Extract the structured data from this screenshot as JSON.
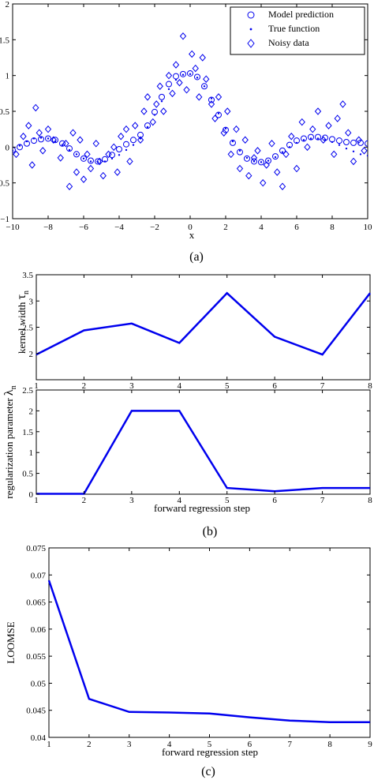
{
  "chart_data": [
    {
      "type": "scatter",
      "panel_caption": "(a)",
      "xlabel": "x",
      "ylabel": "",
      "xlim": [
        -10,
        10
      ],
      "ylim": [
        -1,
        2
      ],
      "xticks": [
        -10,
        -8,
        -6,
        -4,
        -2,
        0,
        2,
        4,
        6,
        8,
        10
      ],
      "xtick_labels": [
        "−10",
        "−8",
        "−6",
        "−4",
        "−2",
        "0",
        "2",
        "4",
        "6",
        "8",
        "10"
      ],
      "yticks": [
        -1,
        -0.5,
        0,
        0.5,
        1,
        1.5,
        2
      ],
      "ytick_labels": [
        "−1",
        "−0.5",
        "0",
        "0.5",
        "1",
        "1.5",
        "2"
      ],
      "legend_position": "top-right",
      "legend": [
        "Model prediction",
        "True function",
        "Noisy data"
      ],
      "series": [
        {
          "name": "Model prediction",
          "marker": "circle",
          "x": [
            -10,
            -9.6,
            -9.2,
            -8.8,
            -8.4,
            -8.0,
            -7.6,
            -7.2,
            -6.8,
            -6.4,
            -6.0,
            -5.6,
            -5.2,
            -4.8,
            -4.4,
            -4.0,
            -3.6,
            -3.2,
            -2.8,
            -2.4,
            -2.0,
            -1.6,
            -1.2,
            -0.8,
            -0.4,
            0.0,
            0.4,
            0.8,
            1.2,
            1.6,
            2.0,
            2.4,
            2.8,
            3.2,
            3.6,
            4.0,
            4.4,
            4.8,
            5.2,
            5.6,
            6.0,
            6.4,
            6.8,
            7.2,
            7.6,
            8.0,
            8.4,
            8.8,
            9.2,
            9.6,
            10.0
          ],
          "y": [
            -0.04,
            0.0,
            0.05,
            0.09,
            0.11,
            0.12,
            0.1,
            0.05,
            -0.02,
            -0.1,
            -0.16,
            -0.19,
            -0.2,
            -0.17,
            -0.11,
            -0.03,
            0.04,
            0.1,
            0.17,
            0.3,
            0.49,
            0.7,
            0.88,
            0.99,
            1.02,
            1.03,
            0.98,
            0.85,
            0.66,
            0.45,
            0.24,
            0.06,
            -0.07,
            -0.16,
            -0.2,
            -0.21,
            -0.19,
            -0.13,
            -0.05,
            0.03,
            0.09,
            0.12,
            0.14,
            0.14,
            0.13,
            0.11,
            0.09,
            0.07,
            0.06,
            0.06,
            0.05
          ]
        },
        {
          "name": "True function",
          "marker": "dot",
          "x": [
            -10,
            -9.6,
            -9.2,
            -8.8,
            -8.4,
            -8.0,
            -7.6,
            -7.2,
            -6.8,
            -6.4,
            -6.0,
            -5.6,
            -5.2,
            -4.8,
            -4.4,
            -4.0,
            -3.6,
            -3.2,
            -2.8,
            -2.4,
            -2.0,
            -1.6,
            -1.2,
            -0.8,
            -0.4,
            0.0,
            0.4,
            0.8,
            1.2,
            1.6,
            2.0,
            2.4,
            2.8,
            3.2,
            3.6,
            4.0,
            4.4,
            4.8,
            5.2,
            5.6,
            6.0,
            6.4,
            6.8,
            7.2,
            7.6,
            8.0,
            8.4,
            8.8,
            9.2,
            9.6,
            10.0
          ],
          "y": [
            -0.05,
            0.02,
            0.08,
            0.12,
            0.13,
            0.12,
            0.08,
            0.03,
            -0.04,
            -0.1,
            -0.16,
            -0.2,
            -0.21,
            -0.2,
            -0.16,
            -0.11,
            -0.04,
            0.03,
            0.12,
            0.28,
            0.45,
            0.64,
            0.81,
            0.94,
            1.01,
            1.02,
            0.97,
            0.85,
            0.68,
            0.47,
            0.26,
            0.08,
            -0.05,
            -0.15,
            -0.2,
            -0.21,
            -0.19,
            -0.14,
            -0.07,
            0.0,
            0.06,
            0.1,
            0.12,
            0.12,
            0.1,
            0.07,
            0.03,
            -0.02,
            -0.06,
            -0.1,
            -0.12
          ]
        },
        {
          "name": "Noisy data",
          "marker": "diamond",
          "x": [
            -9.8,
            -9.4,
            -9.1,
            -8.9,
            -8.7,
            -8.5,
            -8.3,
            -8.0,
            -7.7,
            -7.3,
            -7.0,
            -6.8,
            -6.6,
            -6.4,
            -6.2,
            -6.0,
            -5.8,
            -5.6,
            -5.3,
            -5.1,
            -4.9,
            -4.6,
            -4.3,
            -4.1,
            -3.9,
            -3.6,
            -3.4,
            -3.1,
            -2.8,
            -2.6,
            -2.4,
            -2.1,
            -1.9,
            -1.7,
            -1.5,
            -1.2,
            -1.0,
            -0.8,
            -0.6,
            -0.4,
            -0.2,
            0.1,
            0.3,
            0.5,
            0.7,
            0.9,
            1.2,
            1.4,
            1.6,
            1.9,
            2.1,
            2.3,
            2.6,
            2.8,
            3.1,
            3.3,
            3.6,
            3.8,
            4.1,
            4.3,
            4.6,
            4.9,
            5.2,
            5.4,
            5.7,
            6.0,
            6.3,
            6.6,
            6.9,
            7.2,
            7.5,
            7.8,
            8.1,
            8.3,
            8.6,
            8.9,
            9.2,
            9.5,
            9.8
          ],
          "y": [
            -0.1,
            0.15,
            0.3,
            -0.25,
            0.55,
            0.2,
            -0.05,
            0.25,
            0.1,
            -0.15,
            0.05,
            -0.55,
            0.2,
            -0.35,
            0.1,
            -0.45,
            -0.1,
            -0.3,
            0.05,
            -0.2,
            -0.4,
            -0.1,
            0.0,
            -0.35,
            0.15,
            0.25,
            -0.2,
            0.3,
            0.1,
            0.5,
            0.7,
            0.35,
            0.6,
            0.85,
            0.5,
            1.0,
            0.75,
            1.15,
            0.9,
            1.55,
            0.8,
            1.3,
            1.1,
            0.7,
            1.25,
            0.95,
            0.6,
            0.4,
            0.7,
            0.2,
            0.5,
            -0.1,
            0.25,
            -0.3,
            0.1,
            -0.4,
            -0.15,
            -0.05,
            -0.5,
            -0.25,
            0.05,
            -0.35,
            -0.55,
            -0.1,
            0.15,
            -0.3,
            0.35,
            0.0,
            0.25,
            0.5,
            0.1,
            0.3,
            -0.1,
            0.4,
            0.6,
            0.2,
            -0.2,
            0.1,
            -0.05
          ]
        }
      ]
    },
    {
      "type": "line",
      "panel_caption": "(b)",
      "xlabel": "",
      "ylabel": "kernel width τ_n",
      "ylabel_main": "kernel width ",
      "ylabel_symbol": "τ",
      "ylabel_subscript": "n",
      "xlim": [
        1,
        8
      ],
      "ylim": [
        1.5,
        3.5
      ],
      "xticks": [
        1,
        2,
        3,
        4,
        5,
        6,
        7,
        8
      ],
      "xtick_labels": [
        "1",
        "2",
        "3",
        "4",
        "5",
        "6",
        "7",
        "8"
      ],
      "yticks": [
        2,
        2.5,
        3,
        3.5
      ],
      "ytick_labels": [
        "2",
        "2.5",
        "3",
        "3.5"
      ],
      "x": [
        1,
        2,
        3,
        4,
        5,
        6,
        7,
        8
      ],
      "y": [
        1.98,
        2.44,
        2.57,
        2.2,
        3.15,
        2.32,
        1.98,
        3.15
      ]
    },
    {
      "type": "line",
      "panel_caption": "",
      "xlabel": "forward regression step",
      "ylabel": "regularization parameter λ_n",
      "ylabel_main": "regularization parameter ",
      "ylabel_symbol": "λ",
      "ylabel_subscript": "n",
      "xlim": [
        1,
        8
      ],
      "ylim": [
        0,
        2.5
      ],
      "xticks": [
        1,
        2,
        3,
        4,
        5,
        6,
        7,
        8
      ],
      "xtick_labels": [
        "1",
        "2",
        "3",
        "4",
        "5",
        "6",
        "7",
        "8"
      ],
      "yticks": [
        0,
        0.5,
        1,
        1.5,
        2,
        2.5
      ],
      "ytick_labels": [
        "0",
        "0.5",
        "1",
        "1.5",
        "2",
        "2.5"
      ],
      "x": [
        1,
        2,
        3,
        4,
        5,
        6,
        7,
        8
      ],
      "y": [
        0.01,
        0.01,
        2.0,
        2.0,
        0.15,
        0.07,
        0.15,
        0.15
      ]
    },
    {
      "type": "line",
      "panel_caption": "(c)",
      "xlabel": "forward regression step",
      "ylabel": "LOOMSE",
      "xlim": [
        1,
        9
      ],
      "ylim": [
        0.04,
        0.075
      ],
      "xticks": [
        1,
        2,
        3,
        4,
        5,
        6,
        7,
        8,
        9
      ],
      "xtick_labels": [
        "1",
        "2",
        "3",
        "4",
        "5",
        "6",
        "7",
        "8",
        "9"
      ],
      "yticks": [
        0.04,
        0.045,
        0.05,
        0.055,
        0.06,
        0.065,
        0.07,
        0.075
      ],
      "ytick_labels": [
        "0.04",
        "0.045",
        "0.05",
        "0.055",
        "0.06",
        "0.065",
        "0.07",
        "0.075"
      ],
      "x": [
        1,
        2,
        3,
        4,
        5,
        6,
        7,
        8,
        9
      ],
      "y": [
        0.069,
        0.0471,
        0.0447,
        0.0446,
        0.0444,
        0.0437,
        0.0431,
        0.0428,
        0.0428
      ]
    }
  ],
  "colors": {
    "series": "#0000ee",
    "axis": "#000000"
  }
}
